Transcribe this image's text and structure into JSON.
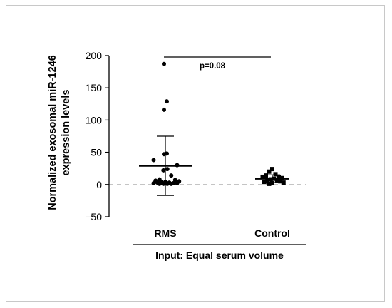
{
  "chart_data": {
    "type": "scatter",
    "categories": [
      "RMS",
      "Control"
    ],
    "ylabel_lines": [
      "Normalized exosomal miR-1246",
      "expression levels"
    ],
    "group_caption": "Input: Equal serum volume",
    "annotation": "p=0.08",
    "ylim": [
      -50,
      200
    ],
    "yticks": [
      -50,
      0,
      50,
      100,
      150,
      200
    ],
    "reference_line_y": 0,
    "series": [
      {
        "category": "RMS",
        "marker": "circle",
        "mean": 29,
        "sd_low": -17,
        "sd_high": 75,
        "points": [
          187,
          129,
          116,
          48,
          47,
          38,
          30,
          24,
          22,
          14,
          8,
          7,
          6,
          5,
          4,
          4,
          3,
          3,
          2,
          2,
          2,
          1,
          1,
          1,
          1
        ]
      },
      {
        "category": "Control",
        "marker": "square",
        "mean": 9,
        "sd_low": 3,
        "sd_high": 15,
        "points": [
          24,
          20,
          16,
          14,
          12,
          12,
          10,
          9,
          8,
          7,
          6,
          5,
          4,
          3,
          2,
          1
        ]
      }
    ]
  }
}
